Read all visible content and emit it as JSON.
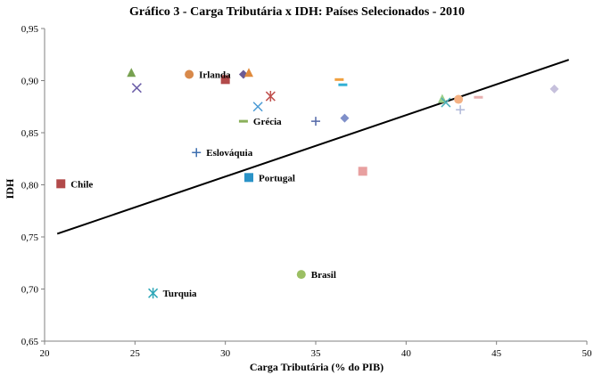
{
  "chart_data": {
    "type": "scatter",
    "title": "Gráfico 3 - Carga Tributária x IDH: Países Selecionados - 2010",
    "xlabel": "Carga Tributária (% do PIB)",
    "ylabel": "IDH",
    "xlim": [
      20,
      50
    ],
    "ylim": [
      0.65,
      0.95
    ],
    "x_ticks": [
      "20",
      "25",
      "30",
      "35",
      "40",
      "45",
      "50"
    ],
    "y_ticks": [
      "0,65",
      "0,70",
      "0,75",
      "0,80",
      "0,85",
      "0,90",
      "0,95"
    ],
    "grid": false,
    "trendline": {
      "x1": 20.7,
      "y1": 0.753,
      "x2": 49.0,
      "y2": 0.92
    },
    "points": [
      {
        "x": 24.8,
        "y": 0.907,
        "marker": "triangle",
        "color": "#77a150",
        "label": ""
      },
      {
        "x": 28.0,
        "y": 0.906,
        "marker": "circle",
        "color": "#d8894b",
        "label": "Irlanda"
      },
      {
        "x": 30.0,
        "y": 0.901,
        "marker": "square",
        "color": "#b24a4a",
        "label": ""
      },
      {
        "x": 31.0,
        "y": 0.906,
        "marker": "diamond",
        "color": "#6b5b95",
        "label": ""
      },
      {
        "x": 31.3,
        "y": 0.907,
        "marker": "triangle",
        "color": "#e08a3c",
        "label": ""
      },
      {
        "x": 25.1,
        "y": 0.893,
        "marker": "x",
        "color": "#6b5ea8",
        "label": ""
      },
      {
        "x": 31.8,
        "y": 0.875,
        "marker": "x",
        "color": "#4a9ad4",
        "label": ""
      },
      {
        "x": 32.5,
        "y": 0.885,
        "marker": "asterisk",
        "color": "#c0504d",
        "label": ""
      },
      {
        "x": 31.0,
        "y": 0.861,
        "marker": "dash",
        "color": "#8ab05a",
        "label": "Grécia"
      },
      {
        "x": 35.0,
        "y": 0.861,
        "marker": "plus",
        "color": "#5468a8",
        "label": ""
      },
      {
        "x": 36.6,
        "y": 0.864,
        "marker": "diamond",
        "color": "#7f8fc9",
        "label": ""
      },
      {
        "x": 36.3,
        "y": 0.901,
        "marker": "dash",
        "color": "#f0a040",
        "label": ""
      },
      {
        "x": 36.5,
        "y": 0.896,
        "marker": "dash",
        "color": "#31b0d5",
        "label": ""
      },
      {
        "x": 28.4,
        "y": 0.831,
        "marker": "plus",
        "color": "#3f6fb0",
        "label": "Eslováquia"
      },
      {
        "x": 31.3,
        "y": 0.807,
        "marker": "square",
        "color": "#2a93c7",
        "label": "Portugal"
      },
      {
        "x": 37.6,
        "y": 0.813,
        "marker": "square",
        "color": "#e8a0a0",
        "label": ""
      },
      {
        "x": 20.9,
        "y": 0.801,
        "marker": "square",
        "color": "#b24a4a",
        "label": "Chile"
      },
      {
        "x": 34.2,
        "y": 0.714,
        "marker": "circle",
        "color": "#9bbf63",
        "label": "Brasil"
      },
      {
        "x": 26.0,
        "y": 0.696,
        "marker": "asterisk",
        "color": "#2fa7b8",
        "label": "Turquia"
      },
      {
        "x": 42.0,
        "y": 0.882,
        "marker": "triangle",
        "color": "#9bcf8a",
        "label": ""
      },
      {
        "x": 42.2,
        "y": 0.879,
        "marker": "x",
        "color": "#4aaeb8",
        "label": ""
      },
      {
        "x": 42.9,
        "y": 0.882,
        "marker": "circle",
        "color": "#f4b183",
        "label": ""
      },
      {
        "x": 43.0,
        "y": 0.872,
        "marker": "plus",
        "color": "#b0b8d8",
        "label": ""
      },
      {
        "x": 44.0,
        "y": 0.884,
        "marker": "dash",
        "color": "#e8b0b0",
        "label": ""
      },
      {
        "x": 48.2,
        "y": 0.892,
        "marker": "diamond",
        "color": "#c6c0dc",
        "label": ""
      }
    ]
  }
}
